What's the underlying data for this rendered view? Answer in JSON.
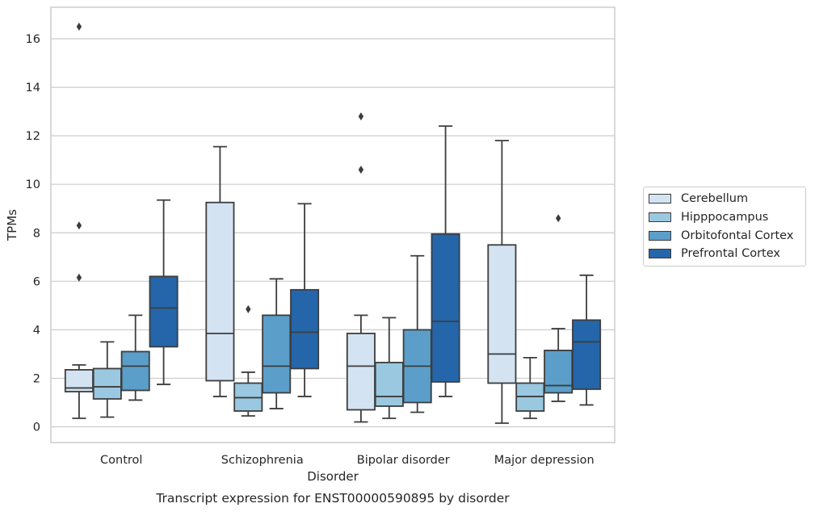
{
  "chart_data": {
    "type": "boxplot",
    "title": "Transcript expression for ENST00000590895 by disorder",
    "xlabel": "Disorder",
    "ylabel": "TPMs",
    "ylim": [
      -0.65,
      17.3
    ],
    "yticks": [
      0,
      2,
      4,
      6,
      8,
      10,
      12,
      14,
      16
    ],
    "grid": true,
    "legend_position": "right",
    "categories": [
      "Control",
      "Schizophrenia",
      "Bipolar disorder",
      "Major depression"
    ],
    "series": [
      {
        "name": "Cerebellum",
        "color": "#d3e3f2",
        "boxes": [
          {
            "whislo": 0.35,
            "q1": 1.45,
            "med": 1.6,
            "q3": 2.35,
            "whishi": 2.55,
            "fliers": [
              16.5,
              8.3,
              6.15
            ]
          },
          {
            "whislo": 1.25,
            "q1": 1.9,
            "med": 3.85,
            "q3": 9.25,
            "whishi": 11.55,
            "fliers": []
          },
          {
            "whislo": 0.2,
            "q1": 0.7,
            "med": 2.5,
            "q3": 3.85,
            "whishi": 4.6,
            "fliers": [
              12.8,
              10.6
            ]
          },
          {
            "whislo": 0.15,
            "q1": 1.8,
            "med": 3.0,
            "q3": 7.5,
            "whishi": 11.8,
            "fliers": []
          }
        ]
      },
      {
        "name": "Hipppocampus",
        "color": "#9ac8e0",
        "boxes": [
          {
            "whislo": 0.4,
            "q1": 1.15,
            "med": 1.65,
            "q3": 2.4,
            "whishi": 3.5,
            "fliers": []
          },
          {
            "whislo": 0.45,
            "q1": 0.65,
            "med": 1.2,
            "q3": 1.8,
            "whishi": 2.25,
            "fliers": [
              4.85
            ]
          },
          {
            "whislo": 0.35,
            "q1": 0.85,
            "med": 1.25,
            "q3": 2.65,
            "whishi": 4.5,
            "fliers": []
          },
          {
            "whislo": 0.35,
            "q1": 0.65,
            "med": 1.25,
            "q3": 1.8,
            "whishi": 2.85,
            "fliers": []
          }
        ]
      },
      {
        "name": "Orbitofontal Cortex",
        "color": "#5a9ec9",
        "boxes": [
          {
            "whislo": 1.1,
            "q1": 1.5,
            "med": 2.5,
            "q3": 3.1,
            "whishi": 4.6,
            "fliers": []
          },
          {
            "whislo": 0.75,
            "q1": 1.4,
            "med": 2.5,
            "q3": 4.6,
            "whishi": 6.1,
            "fliers": []
          },
          {
            "whislo": 0.6,
            "q1": 1.0,
            "med": 2.5,
            "q3": 4.0,
            "whishi": 7.05,
            "fliers": []
          },
          {
            "whislo": 1.05,
            "q1": 1.4,
            "med": 1.7,
            "q3": 3.15,
            "whishi": 4.05,
            "fliers": [
              8.6
            ]
          }
        ]
      },
      {
        "name": "Prefrontal Cortex",
        "color": "#2466a9",
        "boxes": [
          {
            "whislo": 1.75,
            "q1": 3.3,
            "med": 4.9,
            "q3": 6.2,
            "whishi": 9.35,
            "fliers": []
          },
          {
            "whislo": 1.25,
            "q1": 2.4,
            "med": 3.9,
            "q3": 5.65,
            "whishi": 9.2,
            "fliers": []
          },
          {
            "whislo": 1.25,
            "q1": 1.85,
            "med": 4.35,
            "q3": 7.95,
            "whishi": 12.4,
            "fliers": []
          },
          {
            "whislo": 0.9,
            "q1": 1.55,
            "med": 3.5,
            "q3": 4.4,
            "whishi": 6.25,
            "fliers": []
          }
        ]
      }
    ]
  }
}
